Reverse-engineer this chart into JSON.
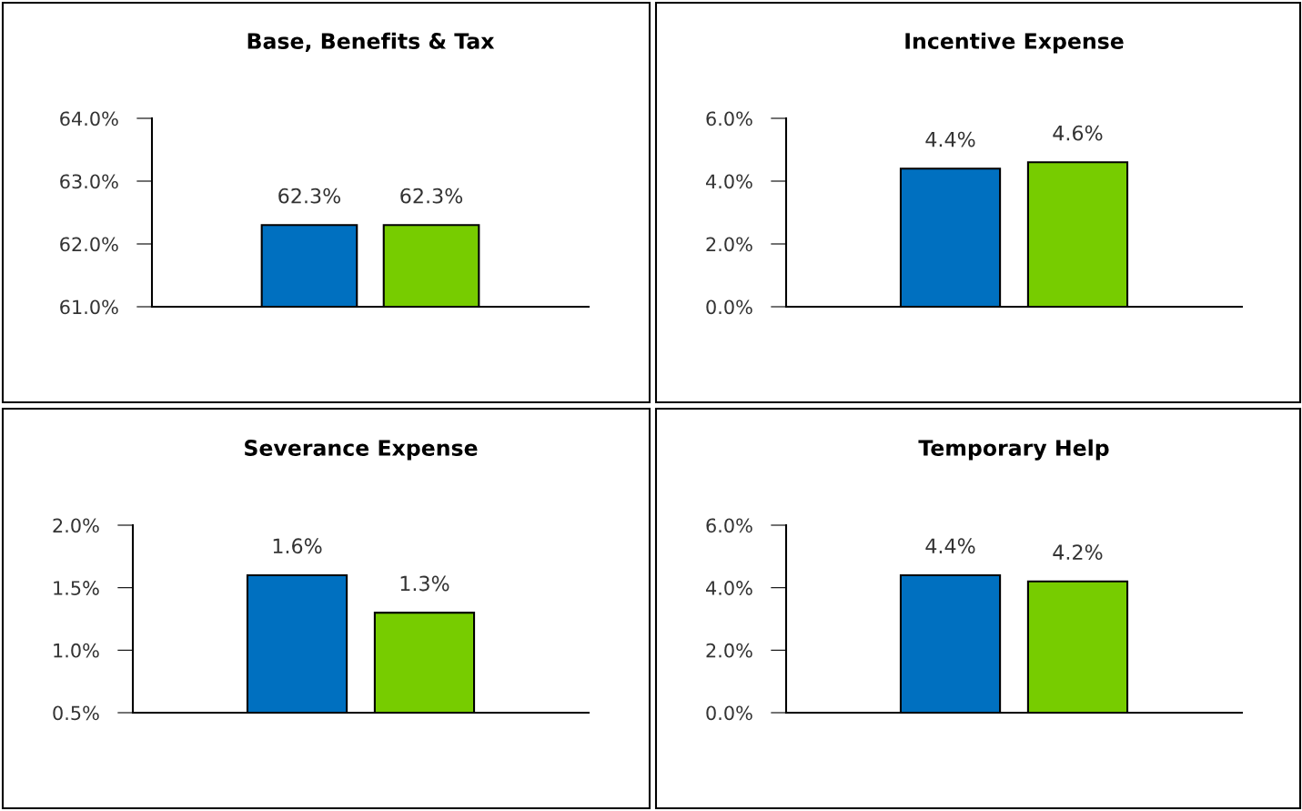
{
  "chart_data": [
    {
      "type": "bar",
      "title": "Base, Benefits & Tax",
      "categories": [
        null,
        null
      ],
      "values": [
        62.3,
        62.3
      ],
      "colors": [
        "#0070c0",
        "#77cc00"
      ],
      "value_labels": [
        "62.3%",
        "62.3%"
      ],
      "ylim": [
        61,
        64
      ],
      "yticks": [
        {
          "value": 61,
          "label": "61.0%"
        },
        {
          "value": 62,
          "label": "62.0%"
        },
        {
          "value": 63,
          "label": "63.0%"
        },
        {
          "value": 64,
          "label": "64.0%"
        }
      ],
      "grid": false,
      "legend": false
    },
    {
      "type": "bar",
      "title": "Incentive Expense",
      "categories": [
        null,
        null
      ],
      "values": [
        4.4,
        4.6
      ],
      "colors": [
        "#0070c0",
        "#77cc00"
      ],
      "value_labels": [
        "4.4%",
        "4.6%"
      ],
      "ylim": [
        0,
        6
      ],
      "yticks": [
        {
          "value": 0,
          "label": "0.0%"
        },
        {
          "value": 2,
          "label": "2.0%"
        },
        {
          "value": 4,
          "label": "4.0%"
        },
        {
          "value": 6,
          "label": "6.0%"
        }
      ],
      "grid": false,
      "legend": false
    },
    {
      "type": "bar",
      "title": "Severance Expense",
      "categories": [
        null,
        null
      ],
      "values": [
        1.6,
        1.3
      ],
      "colors": [
        "#0070c0",
        "#77cc00"
      ],
      "value_labels": [
        "1.6%",
        "1.3%"
      ],
      "ylim": [
        0.5,
        2.0
      ],
      "yticks": [
        {
          "value": 0.5,
          "label": "0.5%"
        },
        {
          "value": 1.0,
          "label": "1.0%"
        },
        {
          "value": 1.5,
          "label": "1.5%"
        },
        {
          "value": 2.0,
          "label": "2.0%"
        }
      ],
      "grid": false,
      "legend": false
    },
    {
      "type": "bar",
      "title": "Temporary Help",
      "categories": [
        null,
        null
      ],
      "values": [
        4.4,
        4.2
      ],
      "colors": [
        "#0070c0",
        "#77cc00"
      ],
      "value_labels": [
        "4.4%",
        "4.2%"
      ],
      "ylim": [
        0,
        6
      ],
      "yticks": [
        {
          "value": 0,
          "label": "0.0%"
        },
        {
          "value": 2,
          "label": "2.0%"
        },
        {
          "value": 4,
          "label": "4.0%"
        },
        {
          "value": 6,
          "label": "6.0%"
        }
      ],
      "grid": false,
      "legend": false
    }
  ]
}
